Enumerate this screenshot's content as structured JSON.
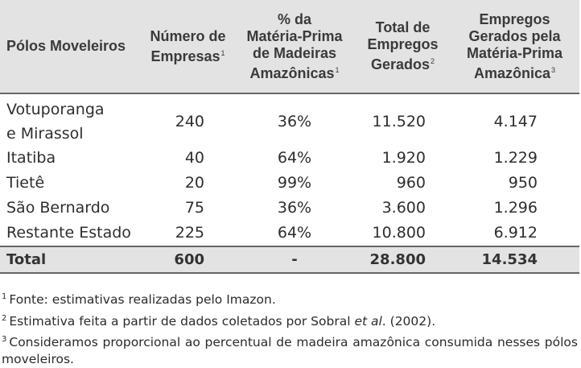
{
  "table": {
    "headers": [
      {
        "lines": [
          "Pólos Moveleiros"
        ],
        "fn": ""
      },
      {
        "lines": [
          "Número de",
          "Empresas"
        ],
        "fn": "1"
      },
      {
        "lines": [
          "% da",
          "Matéria-Prima",
          "de Madeiras",
          "Amazônicas"
        ],
        "fn": "1"
      },
      {
        "lines": [
          "Total de",
          "Empregos",
          "Gerados"
        ],
        "fn": "2"
      },
      {
        "lines": [
          "Empregos",
          "Gerados pela",
          "Matéria-Prima",
          "Amazônica"
        ],
        "fn": "3"
      }
    ],
    "rows": [
      {
        "polo": [
          "Votuporanga",
          "e Mirassol"
        ],
        "empresas": "240",
        "materia_prima": "36%",
        "total_empregos": "11.520",
        "empregos_amazonia": "4.147"
      },
      {
        "polo": [
          "Itatiba"
        ],
        "empresas": "40",
        "materia_prima": "64%",
        "total_empregos": "1.920",
        "empregos_amazonia": "1.229"
      },
      {
        "polo": [
          "Tietê"
        ],
        "empresas": "20",
        "materia_prima": "99%",
        "total_empregos": "960",
        "empregos_amazonia": "950"
      },
      {
        "polo": [
          "São Bernardo"
        ],
        "empresas": "75",
        "materia_prima": "36%",
        "total_empregos": "3.600",
        "empregos_amazonia": "1.296"
      },
      {
        "polo": [
          "Restante Estado"
        ],
        "empresas": "225",
        "materia_prima": "64%",
        "total_empregos": "10.800",
        "empregos_amazonia": "6.912"
      }
    ],
    "total": {
      "label": "Total",
      "empresas": "600",
      "materia_prima": "-",
      "total_empregos": "28.800",
      "empregos_amazonia": "14.534"
    }
  },
  "footnotes": [
    {
      "num": "1",
      "text": "Fonte: estimativas realizadas pelo Imazon."
    },
    {
      "num": "2",
      "text_before": "Estimativa feita a partir de dados coletados por Sobral ",
      "text_italic": "et al",
      "text_after": ". (2002)."
    },
    {
      "num": "3",
      "text": "Consideramos proporcional ao percentual de madeira amazônica consumida nesses pólos moveleiros."
    }
  ]
}
